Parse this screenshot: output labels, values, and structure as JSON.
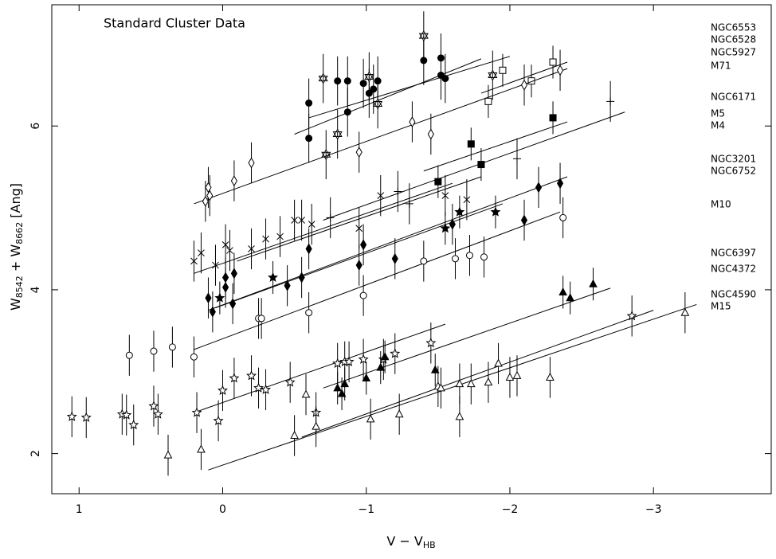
{
  "chart_data": {
    "type": "scatter",
    "title": "Standard Cluster Data",
    "xlabel_parts": [
      "V − V",
      "HB"
    ],
    "ylabel_parts": [
      "W",
      "8542",
      " + W",
      "8662",
      " [Ang]"
    ],
    "xlim": [
      1.19,
      -3.82
    ],
    "ylim": [
      1.51,
      7.48
    ],
    "xticks": [
      1,
      0,
      {
        "value": -1,
        "label": "−1"
      },
      {
        "value": -2,
        "label": "−2"
      },
      {
        "value": -3,
        "label": "−3"
      }
    ],
    "yticks": [
      2,
      4,
      6
    ],
    "cluster_labels": [
      "NGC6553",
      "NGC6528",
      "NGC5927",
      "M71",
      "NGC6171",
      "M5",
      "M4",
      "NGC3201",
      "NGC6752",
      "M10",
      "NGC6397",
      "NGC4372",
      "NGC4590",
      "M15"
    ],
    "series": [
      {
        "marker": "filled-circle",
        "err": 0.3,
        "x": [
          -0.6,
          -0.6,
          -0.8,
          -0.87,
          -0.87,
          -0.98,
          -1.02,
          -1.05,
          -1.08,
          -1.4,
          -1.52,
          -1.52,
          -1.55
        ],
        "y": [
          6.28,
          5.85,
          6.55,
          6.55,
          6.17,
          6.52,
          6.4,
          6.45,
          6.55,
          6.8,
          6.83,
          6.62,
          6.58
        ],
        "fits": [
          [
            -0.5,
            5.9,
            -1.8,
            6.82
          ],
          [
            -0.6,
            6.1,
            -2.0,
            6.85
          ]
        ]
      },
      {
        "marker": "hexagram",
        "err": 0.3,
        "x": [
          -0.7,
          -1.02,
          -1.08,
          -1.4,
          -1.88,
          -0.72,
          -0.8
        ],
        "y": [
          6.58,
          6.6,
          6.27,
          7.1,
          6.62,
          5.65,
          5.9
        ],
        "fits": []
      },
      {
        "marker": "square",
        "err": 0.2,
        "x": [
          -1.85,
          -1.95,
          -2.15,
          -2.3
        ],
        "y": [
          6.3,
          6.68,
          6.55,
          6.78
        ],
        "fits": [
          [
            -1.8,
            6.4,
            -2.4,
            6.78
          ]
        ]
      },
      {
        "marker": "diamond",
        "err": 0.25,
        "x": [
          0.1,
          0.12,
          0.09,
          -0.08,
          -0.2,
          -0.95,
          -1.32,
          -1.45,
          -2.1,
          -2.35
        ],
        "y": [
          5.25,
          5.08,
          5.15,
          5.33,
          5.55,
          5.68,
          6.05,
          5.9,
          6.5,
          6.68
        ],
        "fits": [
          [
            0.2,
            5.05,
            -2.4,
            6.7
          ]
        ]
      },
      {
        "marker": "filled-square",
        "err": 0.2,
        "x": [
          -1.5,
          -1.73,
          -1.8,
          -2.3
        ],
        "y": [
          5.32,
          5.78,
          5.53,
          6.1
        ],
        "fits": [
          [
            -1.4,
            5.45,
            -2.4,
            6.05
          ]
        ]
      },
      {
        "marker": "plus",
        "err": 0.25,
        "x": [
          -0.75,
          -1.22,
          -1.3,
          -2.05,
          -2.7
        ],
        "y": [
          4.88,
          5.2,
          5.05,
          5.6,
          6.3
        ],
        "fits": [
          [
            -0.7,
            4.85,
            -2.8,
            6.17
          ]
        ]
      },
      {
        "marker": "cross",
        "err": 0.25,
        "x": [
          0.2,
          0.15,
          0.05,
          -0.02,
          -0.05,
          -0.2,
          -0.3,
          -0.4,
          -0.5,
          -0.55,
          -0.62,
          -0.95,
          -1.1,
          -1.55,
          -1.7
        ],
        "y": [
          4.35,
          4.45,
          4.3,
          4.55,
          4.48,
          4.5,
          4.62,
          4.65,
          4.85,
          4.85,
          4.8,
          4.75,
          5.15,
          5.15,
          5.1
        ],
        "fits": [
          [
            0.2,
            4.2,
            -1.6,
            5.3
          ],
          [
            -0.1,
            4.35,
            -1.8,
            5.38
          ]
        ]
      },
      {
        "marker": "filled-diamond",
        "err": 0.25,
        "x": [
          0.1,
          0.07,
          -0.02,
          -0.02,
          -0.08,
          -0.07,
          -0.45,
          -0.55,
          -0.6,
          -0.95,
          -0.98,
          -1.2,
          -1.6,
          -2.1,
          -2.2,
          -2.35
        ],
        "y": [
          3.9,
          3.73,
          4.15,
          4.03,
          4.2,
          3.83,
          4.05,
          4.15,
          4.5,
          4.3,
          4.55,
          4.38,
          4.8,
          4.85,
          5.25,
          5.3
        ],
        "fits": [
          [
            0.1,
            3.75,
            -2.4,
            5.38
          ]
        ]
      },
      {
        "marker": "filled-star",
        "err": 0.2,
        "x": [
          0.02,
          -0.35,
          -1.55,
          -1.65,
          -1.9
        ],
        "y": [
          3.9,
          4.15,
          4.75,
          4.95,
          4.95
        ],
        "fits": [
          [
            0.05,
            3.78,
            -1.95,
            5.05
          ]
        ]
      },
      {
        "marker": "circle",
        "err": 0.25,
        "x": [
          0.65,
          0.48,
          0.35,
          0.2,
          -0.25,
          -0.27,
          -0.6,
          -0.98,
          -1.4,
          -1.62,
          -1.72,
          -1.82,
          -2.37
        ],
        "y": [
          3.2,
          3.25,
          3.3,
          3.18,
          3.65,
          3.65,
          3.72,
          3.93,
          4.35,
          4.38,
          4.42,
          4.4,
          4.88
        ],
        "fits": [
          [
            0.2,
            3.27,
            -2.35,
            4.95
          ]
        ]
      },
      {
        "marker": "star",
        "err": 0.25,
        "x": [
          1.05,
          0.95,
          0.7,
          0.67,
          0.62,
          0.48,
          0.45,
          0.18,
          0.03,
          0.0,
          -0.08,
          -0.2,
          -0.25,
          -0.3,
          -0.47,
          -0.65,
          -0.8,
          -0.85,
          -0.88,
          -0.98,
          -1.12,
          -1.2,
          -1.45,
          -2.85
        ],
        "y": [
          2.45,
          2.44,
          2.48,
          2.47,
          2.35,
          2.58,
          2.48,
          2.5,
          2.4,
          2.77,
          2.92,
          2.95,
          2.8,
          2.78,
          2.87,
          2.5,
          3.1,
          3.12,
          3.12,
          3.15,
          3.15,
          3.22,
          3.35,
          3.68
        ],
        "fits": [
          [
            0.2,
            2.5,
            -1.55,
            3.58
          ]
        ]
      },
      {
        "marker": "filled-triangle",
        "err": 0.2,
        "x": [
          -0.8,
          -0.83,
          -0.85,
          -1.0,
          -1.1,
          -1.13,
          -1.48,
          -2.37,
          -2.42,
          -2.58
        ],
        "y": [
          2.8,
          2.73,
          2.85,
          2.92,
          3.05,
          3.18,
          3.02,
          3.97,
          3.9,
          4.07
        ],
        "fits": [
          [
            -0.7,
            2.8,
            -2.7,
            4.02
          ]
        ]
      },
      {
        "marker": "triangle",
        "err": 0.25,
        "x": [
          0.15,
          0.38,
          -0.5,
          -0.58,
          -0.65,
          -1.03,
          -1.23,
          -1.5,
          -1.52,
          -1.65,
          -1.65,
          -1.73,
          -1.85,
          -1.92,
          -2.0,
          -2.05,
          -2.28,
          -3.22
        ],
        "y": [
          2.05,
          1.98,
          2.22,
          2.72,
          2.33,
          2.42,
          2.48,
          2.82,
          2.8,
          2.85,
          2.45,
          2.85,
          2.87,
          3.1,
          2.93,
          2.95,
          2.93,
          3.72
        ],
        "fits": [
          [
            0.1,
            1.8,
            -3.3,
            3.82
          ],
          [
            -0.55,
            2.2,
            -3.0,
            3.75
          ]
        ]
      }
    ]
  }
}
